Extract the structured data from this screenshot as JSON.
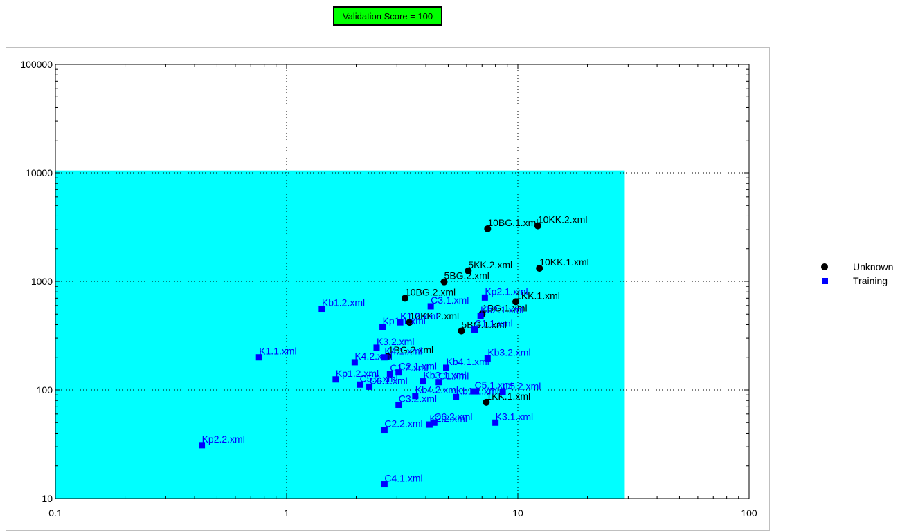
{
  "badge": {
    "text": "Validation Score = 100",
    "color": "#00ff00"
  },
  "legend": [
    {
      "name": "Unknown",
      "marker": "circle",
      "color": "#000000"
    },
    {
      "name": "Training",
      "marker": "square",
      "color": "#0000ff"
    }
  ],
  "chart_data": {
    "type": "scatter",
    "xscale": "log",
    "yscale": "log",
    "xlim": [
      0.1,
      100
    ],
    "ylim": [
      10,
      100000
    ],
    "xticks": [
      "0.1",
      "1",
      "10",
      "100"
    ],
    "yticks": [
      "10",
      "100",
      "1000",
      "10000",
      "100000"
    ],
    "region": {
      "x": [
        0.1,
        29
      ],
      "y": [
        10,
        10500
      ],
      "color": "#00ffff"
    },
    "legend_position": "right",
    "series": [
      {
        "name": "Unknown",
        "marker": "circle",
        "color": "#000000",
        "points": [
          {
            "label": "10BG.1.xml",
            "x": 7.4,
            "y": 3050
          },
          {
            "label": "10KK.2.xml",
            "x": 12.2,
            "y": 3250
          },
          {
            "label": "10KK.1.xml",
            "x": 12.4,
            "y": 1320
          },
          {
            "label": "5KK.2.xml",
            "x": 6.1,
            "y": 1250
          },
          {
            "label": "5BG.2.xml",
            "x": 4.8,
            "y": 990
          },
          {
            "label": "10BG.2.xml",
            "x": 3.25,
            "y": 700
          },
          {
            "label": "1KK.1.xml",
            "x": 9.8,
            "y": 650
          },
          {
            "label": "1BG.1.xml",
            "x": 7.0,
            "y": 500
          },
          {
            "label": "10KK.2.xml",
            "x": 3.4,
            "y": 420
          },
          {
            "label": "5BG.1.xml",
            "x": 5.7,
            "y": 350
          },
          {
            "label": "1BG.2.xml",
            "x": 2.75,
            "y": 205
          },
          {
            "label": "1KK.1.xml",
            "x": 7.3,
            "y": 77
          }
        ]
      },
      {
        "name": "Training",
        "marker": "square",
        "color": "#0000ff",
        "points": [
          {
            "label": "Kb1.2.xml",
            "x": 1.42,
            "y": 560
          },
          {
            "label": "K1.1.xml",
            "x": 0.76,
            "y": 200
          },
          {
            "label": "Kp2.2.xml",
            "x": 0.43,
            "y": 31
          },
          {
            "label": "C4.1.xml",
            "x": 2.65,
            "y": 13.5
          },
          {
            "label": "C3.1.xml",
            "x": 4.2,
            "y": 590
          },
          {
            "label": "Kp2.1.xml",
            "x": 7.2,
            "y": 710
          },
          {
            "label": "Kb2.1.xml",
            "x": 6.9,
            "y": 480
          },
          {
            "label": "Kp1.1.xml",
            "x": 2.6,
            "y": 380
          },
          {
            "label": "K1.2.xml",
            "x": 3.1,
            "y": 420
          },
          {
            "label": "C1.1.xml",
            "x": 6.5,
            "y": 360
          },
          {
            "label": "K3.2.xml",
            "x": 2.45,
            "y": 245
          },
          {
            "label": "K4.1.xml",
            "x": 2.65,
            "y": 200
          },
          {
            "label": "K4.2.xml",
            "x": 1.97,
            "y": 180
          },
          {
            "label": "Kb3.2.xml",
            "x": 7.4,
            "y": 195
          },
          {
            "label": "Kb4.1.xml",
            "x": 4.9,
            "y": 160
          },
          {
            "label": "C2.1.xml",
            "x": 3.05,
            "y": 145
          },
          {
            "label": "C1.2.xml",
            "x": 2.8,
            "y": 140
          },
          {
            "label": "Kp1.2.xml",
            "x": 1.63,
            "y": 125
          },
          {
            "label": "C5.2.xml",
            "x": 2.07,
            "y": 112
          },
          {
            "label": "C6.1.xml",
            "x": 2.28,
            "y": 107
          },
          {
            "label": "Kb3.1.xml",
            "x": 3.9,
            "y": 120
          },
          {
            "label": "C1.xml",
            "x": 4.55,
            "y": 118
          },
          {
            "label": "C5.2.xml",
            "x": 8.6,
            "y": 95
          },
          {
            "label": "C5.1.xml",
            "x": 6.5,
            "y": 97
          },
          {
            "label": "Kb4.2.xml",
            "x": 3.6,
            "y": 88
          },
          {
            "label": "Kb1.1.xml",
            "x": 5.4,
            "y": 86
          },
          {
            "label": "C3.2.xml",
            "x": 3.05,
            "y": 73
          },
          {
            "label": "C6.2.xml",
            "x": 4.35,
            "y": 50
          },
          {
            "label": "K2.2.xml",
            "x": 4.15,
            "y": 48
          },
          {
            "label": "K3.1.xml",
            "x": 8.0,
            "y": 50
          },
          {
            "label": "C2.2.xml",
            "x": 2.65,
            "y": 43
          }
        ]
      }
    ]
  }
}
